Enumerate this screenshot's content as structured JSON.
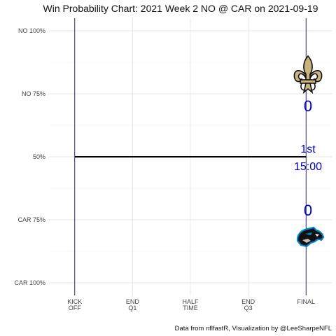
{
  "chart_data": {
    "type": "line",
    "title": "Win Probability Chart: 2021 Week 2 NO @ CAR on 2021-09-19",
    "caption": "Data from nflfastR, Visualization by @LeeSharpeNFL",
    "x_ticks": [
      {
        "value": 0,
        "line1": "KICK",
        "line2": "OFF"
      },
      {
        "value": 900,
        "line1": "END",
        "line2": "Q1"
      },
      {
        "value": 1800,
        "line1": "HALF",
        "line2": "TIME"
      },
      {
        "value": 2700,
        "line1": "END",
        "line2": "Q3"
      },
      {
        "value": 3600,
        "line1": "FINAL",
        "line2": ""
      }
    ],
    "y_ticks": [
      {
        "value": 1.0,
        "label": "NO 100%"
      },
      {
        "value": 0.75,
        "label": "NO 75%"
      },
      {
        "value": 0.5,
        "label": "50%"
      },
      {
        "value": 0.25,
        "label": "CAR 75%"
      },
      {
        "value": 0.0,
        "label": "CAR 100%"
      }
    ],
    "xlim": [
      -400,
      4000
    ],
    "ylim": [
      -0.05,
      1.05
    ],
    "series": [
      {
        "x": [
          0,
          3600
        ],
        "y": [
          0.5,
          0.5
        ],
        "color": "#000000"
      }
    ],
    "home_team": "CAR",
    "away_team": "NO",
    "away_score": "0",
    "home_score": "0",
    "period": "1st",
    "clock": "15:00",
    "accent_color": "#0000cc",
    "grid": true
  },
  "logos": {
    "away_logo": "saints-fleur-de-lis-logo",
    "home_logo": "panthers-logo"
  }
}
